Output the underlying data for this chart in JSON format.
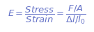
{
  "text_color": "#6674c8",
  "bg_color": "#ffffff",
  "formula": "$\\mathit{E}{=}\\dfrac{\\mathit{Stress}}{\\mathit{Strain}}{=}\\dfrac{\\mathit{F/A}}{\\Delta \\mathit{l/l_0}}$",
  "fontsize": 9.5,
  "fig_width": 1.35,
  "fig_height": 0.46,
  "dpi": 100
}
